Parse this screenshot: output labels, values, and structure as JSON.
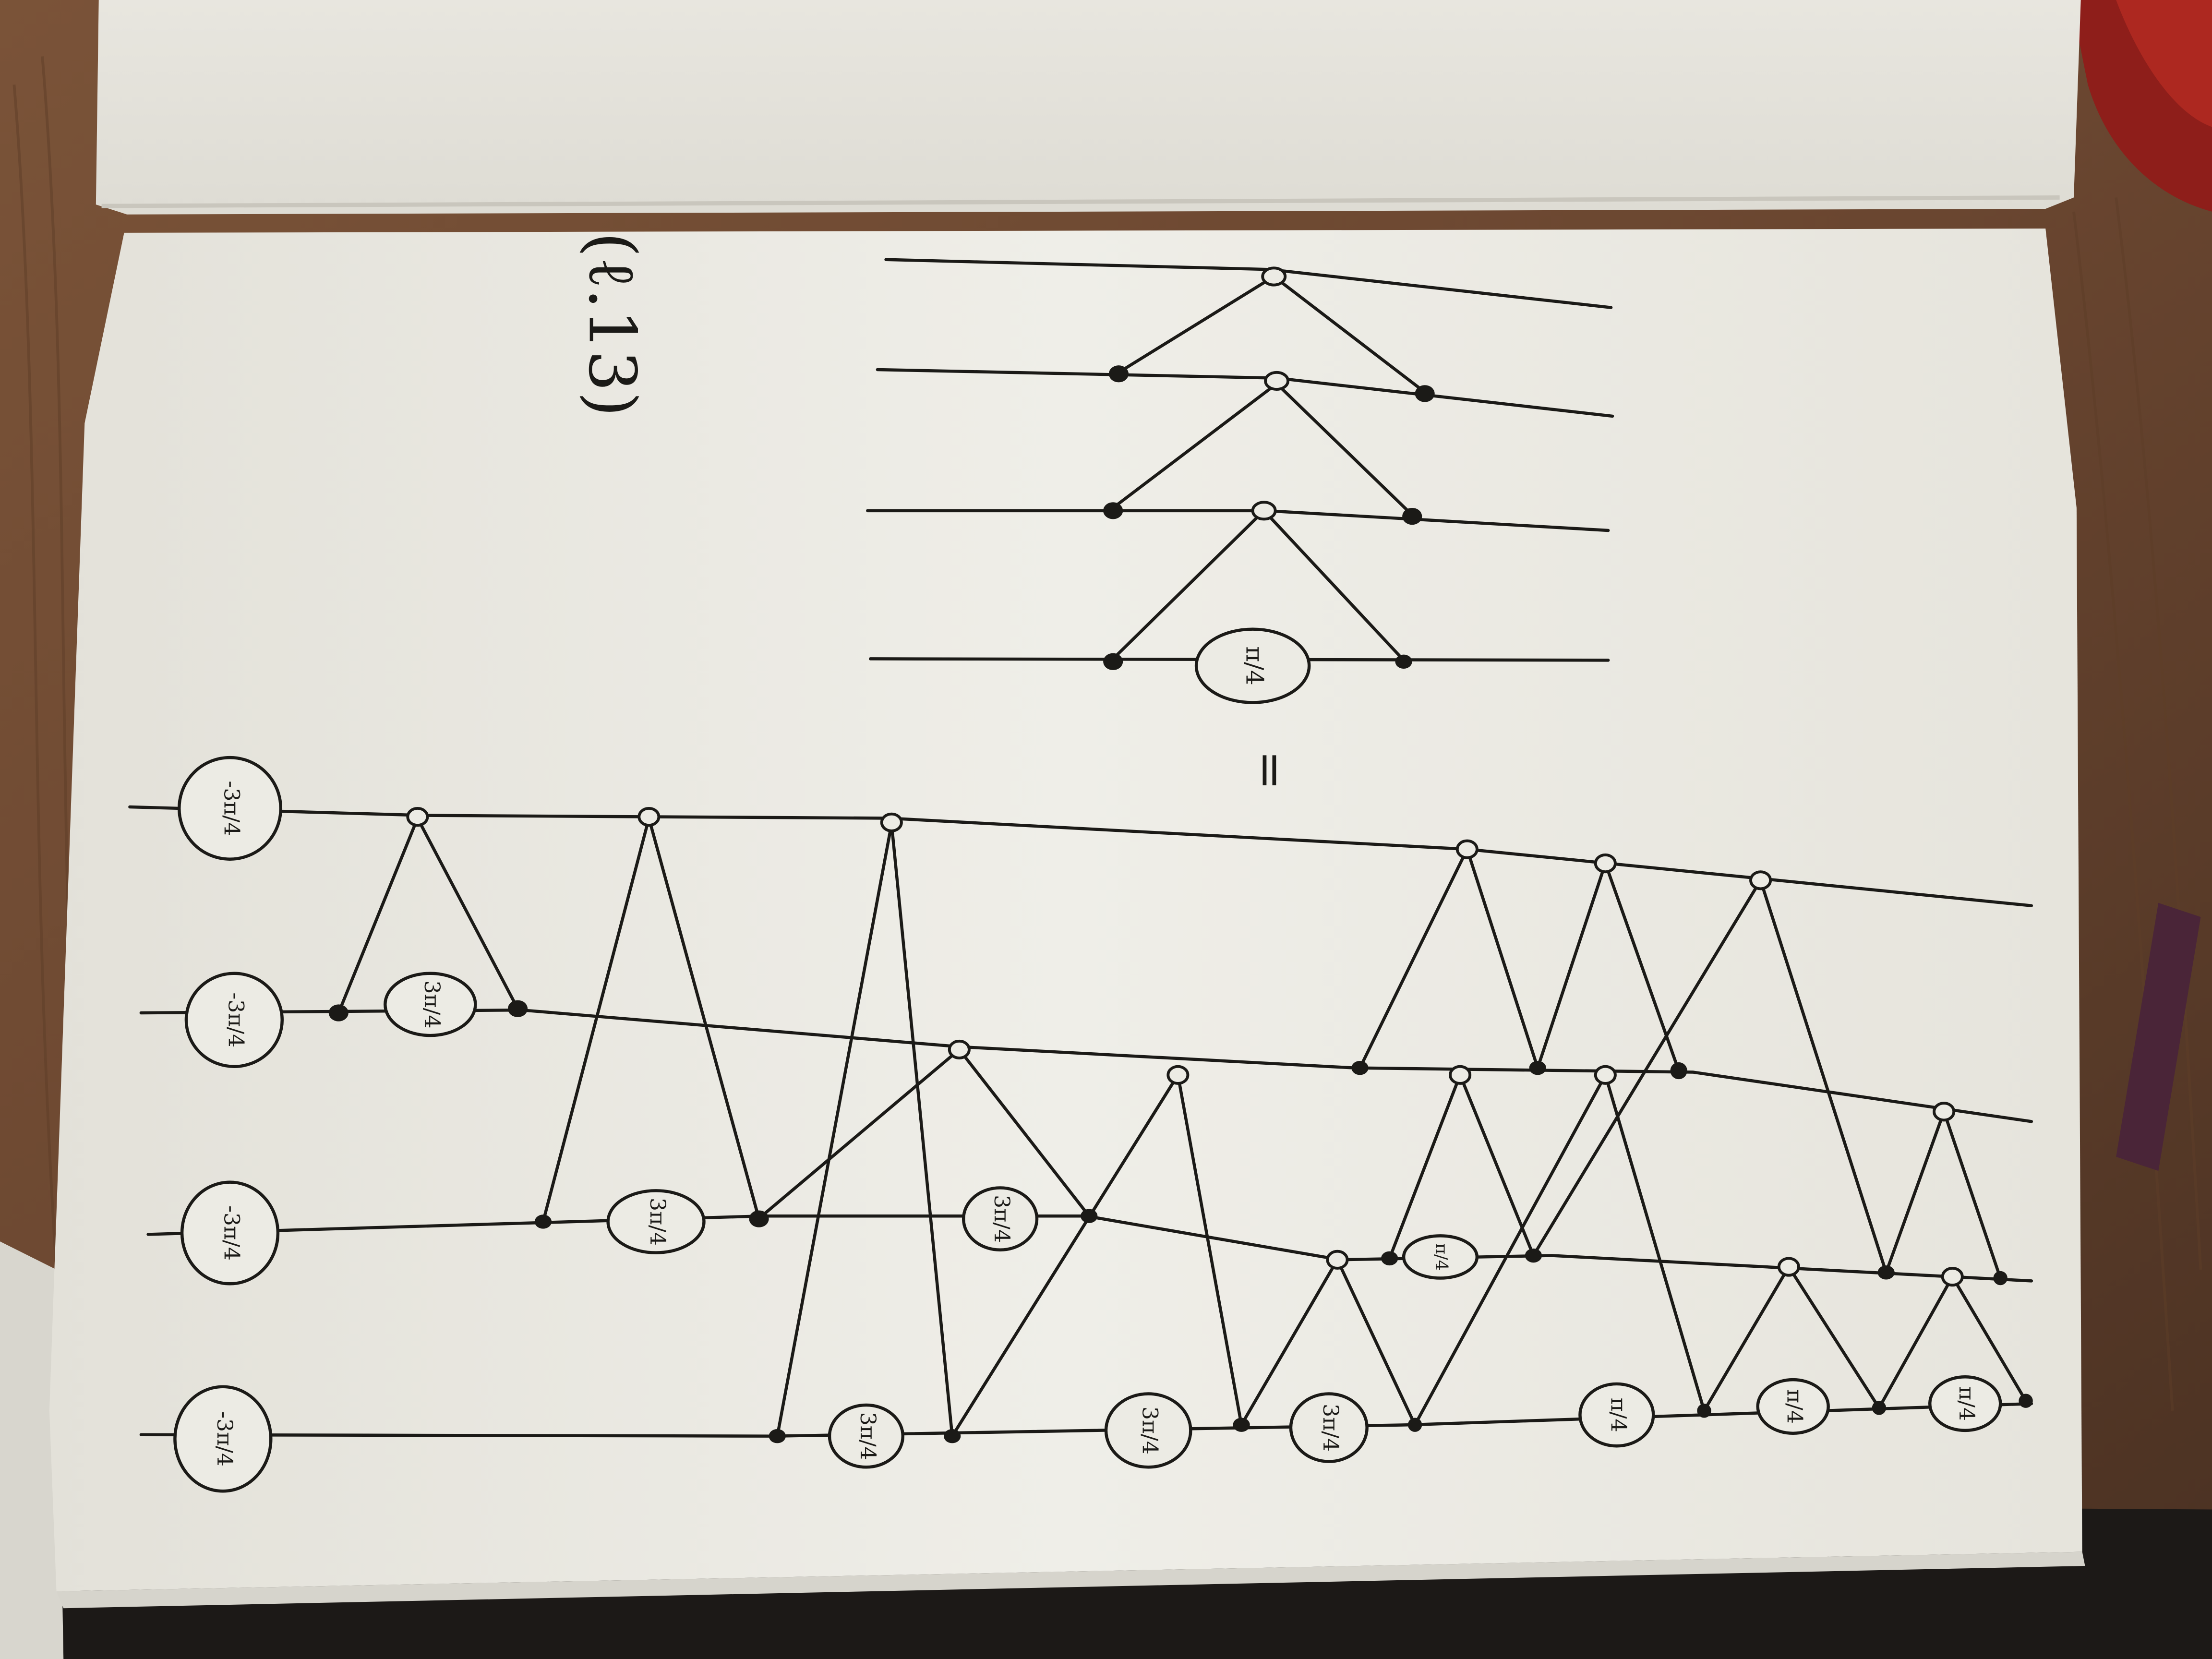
{
  "photo": {
    "subject": "sketchbook-page-with-zx-diagrams",
    "colors": {
      "desk": "#7a5338",
      "desk_grain": "#5e3e28",
      "paper": "#ecebe4",
      "paper_shadow": "#d9d7cf",
      "upper_page": "#e6e4dc",
      "ink": "#1b1a17",
      "dark_surface": "#1c1917"
    }
  },
  "margin_note": {
    "text": "(ℓ.13)"
  },
  "equals_sign": {
    "text": "="
  },
  "phases": {
    "pi_over_4": "π/4",
    "three_pi_over_4": "3π/4",
    "neg_three_pi_over_4": "-3π/4"
  },
  "upper_diagram": {
    "wires": 4,
    "spiders": [
      {
        "type": "white",
        "wire": 1
      },
      {
        "type": "black",
        "wire": 2
      },
      {
        "type": "white",
        "wire": 2
      },
      {
        "type": "black",
        "wire": 2
      },
      {
        "type": "black",
        "wire": 3
      },
      {
        "type": "white",
        "wire": 3
      },
      {
        "type": "black",
        "wire": 3
      },
      {
        "type": "black",
        "wire": 4
      },
      {
        "type": "phase",
        "wire": 4,
        "phase": "π/4"
      },
      {
        "type": "black",
        "wire": 4
      }
    ]
  },
  "lower_diagram": {
    "wires": 4,
    "input_phases": [
      "-3π/4",
      "-3π/4",
      "-3π/4",
      "-3π/4"
    ],
    "phase_boxes": [
      {
        "wire": 2,
        "phase": "3π/4"
      },
      {
        "wire": 3,
        "phase": "3π/4"
      },
      {
        "wire": 3,
        "phase": "3π/4"
      },
      {
        "wire": 3,
        "phase": "π/4"
      },
      {
        "wire": 4,
        "phase": "3π/4"
      },
      {
        "wire": 4,
        "phase": "3π/4"
      },
      {
        "wire": 4,
        "phase": "3π/4"
      },
      {
        "wire": 4,
        "phase": "π/4"
      },
      {
        "wire": 4,
        "phase": "π/4"
      },
      {
        "wire": 4,
        "phase": "π/4"
      }
    ]
  }
}
